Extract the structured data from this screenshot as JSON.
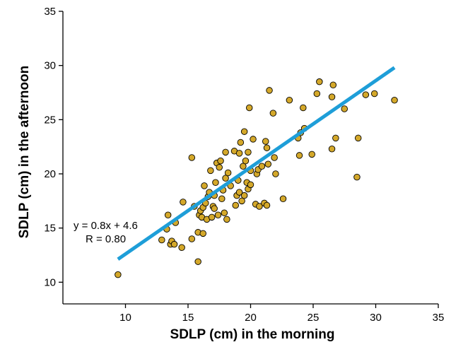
{
  "chart_data": {
    "type": "scatter",
    "xlabel": "SDLP (cm) in the morning",
    "ylabel": "SDLP (cm) in the afternoon",
    "xlim": [
      5,
      35
    ],
    "ylim": [
      8,
      35
    ],
    "xticks": [
      10,
      15,
      20,
      25,
      30,
      35
    ],
    "yticks": [
      10,
      15,
      20,
      25,
      30,
      35
    ],
    "grid": false,
    "point_color": "#D4A82A",
    "line_color": "#1E9ED8",
    "annotations": [
      "y = 0.8x + 4.6",
      "R = 0.80"
    ],
    "regression": {
      "slope": 0.8,
      "intercept": 4.6,
      "x_range": [
        9.4,
        31.5
      ]
    },
    "points": [
      [
        9.4,
        10.7
      ],
      [
        12.9,
        13.9
      ],
      [
        13.4,
        16.2
      ],
      [
        13.3,
        14.9
      ],
      [
        13.6,
        13.5
      ],
      [
        13.7,
        13.8
      ],
      [
        13.9,
        13.5
      ],
      [
        14.0,
        15.5
      ],
      [
        14.5,
        13.2
      ],
      [
        14.6,
        17.4
      ],
      [
        15.3,
        14.0
      ],
      [
        15.3,
        21.5
      ],
      [
        15.5,
        17.0
      ],
      [
        15.8,
        14.6
      ],
      [
        15.8,
        11.9
      ],
      [
        15.9,
        16.2
      ],
      [
        16.0,
        16.6
      ],
      [
        16.1,
        16.0
      ],
      [
        16.2,
        14.5
      ],
      [
        16.2,
        16.9
      ],
      [
        16.3,
        18.9
      ],
      [
        16.4,
        17.3
      ],
      [
        16.5,
        15.8
      ],
      [
        16.6,
        17.9
      ],
      [
        16.7,
        18.3
      ],
      [
        16.8,
        20.3
      ],
      [
        16.9,
        16.0
      ],
      [
        17.0,
        17.0
      ],
      [
        17.1,
        16.8
      ],
      [
        17.1,
        18.0
      ],
      [
        17.2,
        19.2
      ],
      [
        17.3,
        21.0
      ],
      [
        17.4,
        16.2
      ],
      [
        17.5,
        20.6
      ],
      [
        17.6,
        21.2
      ],
      [
        17.7,
        17.7
      ],
      [
        17.8,
        18.5
      ],
      [
        17.9,
        16.4
      ],
      [
        18.0,
        22.0
      ],
      [
        18.0,
        19.6
      ],
      [
        18.1,
        15.8
      ],
      [
        18.2,
        20.1
      ],
      [
        18.4,
        18.9
      ],
      [
        18.7,
        22.1
      ],
      [
        18.8,
        17.1
      ],
      [
        18.9,
        18.0
      ],
      [
        19.0,
        19.4
      ],
      [
        19.1,
        21.9
      ],
      [
        19.1,
        18.3
      ],
      [
        19.2,
        22.9
      ],
      [
        19.3,
        17.5
      ],
      [
        19.4,
        20.7
      ],
      [
        19.5,
        23.9
      ],
      [
        19.5,
        18.0
      ],
      [
        19.6,
        21.2
      ],
      [
        19.7,
        19.2
      ],
      [
        19.8,
        18.6
      ],
      [
        19.8,
        22.0
      ],
      [
        19.9,
        26.1
      ],
      [
        20.0,
        20.3
      ],
      [
        20.0,
        19.0
      ],
      [
        20.2,
        23.2
      ],
      [
        20.4,
        17.2
      ],
      [
        20.5,
        20.0
      ],
      [
        20.6,
        20.4
      ],
      [
        20.7,
        17.0
      ],
      [
        20.9,
        20.7
      ],
      [
        21.1,
        17.3
      ],
      [
        21.3,
        17.1
      ],
      [
        21.2,
        23.0
      ],
      [
        21.3,
        22.4
      ],
      [
        21.4,
        20.9
      ],
      [
        21.5,
        27.7
      ],
      [
        21.8,
        25.6
      ],
      [
        21.9,
        21.5
      ],
      [
        22.0,
        20.0
      ],
      [
        22.6,
        17.7
      ],
      [
        23.1,
        26.8
      ],
      [
        23.8,
        23.3
      ],
      [
        23.9,
        21.7
      ],
      [
        24.0,
        23.8
      ],
      [
        24.2,
        26.1
      ],
      [
        24.3,
        24.2
      ],
      [
        24.9,
        21.8
      ],
      [
        25.3,
        27.4
      ],
      [
        25.5,
        28.5
      ],
      [
        26.5,
        22.3
      ],
      [
        26.5,
        27.1
      ],
      [
        26.6,
        28.2
      ],
      [
        26.8,
        23.3
      ],
      [
        27.5,
        26.0
      ],
      [
        28.5,
        19.7
      ],
      [
        28.6,
        23.3
      ],
      [
        29.2,
        27.3
      ],
      [
        29.9,
        27.4
      ],
      [
        31.5,
        26.8
      ]
    ]
  }
}
